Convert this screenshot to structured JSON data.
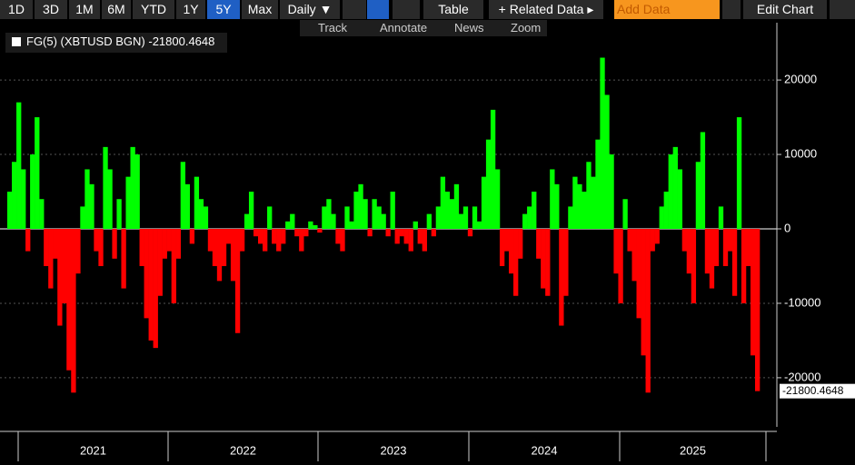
{
  "toolbar": {
    "ranges": [
      "1D",
      "3D",
      "1M",
      "6M",
      "YTD",
      "1Y",
      "5Y",
      "Max"
    ],
    "frequency": "Daily ▼",
    "table": "Table",
    "related": "+ Related Data ▸",
    "add_data": "Add Data",
    "edit": "Edit Chart"
  },
  "subtoolbar": [
    "Track",
    "Annotate",
    "News",
    "Zoom"
  ],
  "chart_data": {
    "type": "bar",
    "series_name": "FG(5) (XBTUSD BGN)",
    "positive_color": "#00ff00",
    "negative_color": "#ff0000",
    "x_labels": [
      "2021",
      "2022",
      "2023",
      "2024",
      "2025"
    ],
    "ylim": [
      -26600,
      27700
    ],
    "yticks": [
      -20000,
      -10000,
      0,
      10000,
      20000
    ],
    "grid": true,
    "values": [
      5000,
      9000,
      17000,
      8000,
      -3000,
      10000,
      15000,
      4000,
      -5000,
      -8000,
      -4000,
      -13000,
      -10000,
      -19000,
      -22000,
      -6000,
      3000,
      8000,
      6000,
      -3000,
      -5000,
      11000,
      8000,
      -4000,
      4000,
      -8000,
      7000,
      11000,
      10000,
      -5000,
      -12000,
      -15000,
      -16000,
      -9000,
      -4000,
      -3000,
      -10000,
      -4000,
      9000,
      6000,
      -2000,
      7000,
      4000,
      3000,
      -3000,
      -5000,
      -7000,
      -5000,
      -2000,
      -7000,
      -14000,
      -3000,
      2000,
      5000,
      -1000,
      -2000,
      -3000,
      3000,
      -2000,
      -3000,
      -2000,
      1000,
      2000,
      -1000,
      -3000,
      -1000,
      1000,
      500,
      -500,
      3000,
      4000,
      2000,
      -2000,
      -3000,
      3000,
      1000,
      5000,
      6000,
      4000,
      -1000,
      4000,
      3000,
      2000,
      -1000,
      5000,
      -2000,
      -1000,
      -2000,
      -3000,
      1000,
      -2000,
      -3000,
      2000,
      -1000,
      3000,
      7000,
      5000,
      4000,
      6000,
      2000,
      3000,
      -1000,
      3000,
      1000,
      7000,
      12000,
      16000,
      8000,
      -5000,
      -3000,
      -6000,
      -9000,
      -4000,
      2000,
      3000,
      5000,
      -4000,
      -8000,
      -9000,
      8000,
      6000,
      -13000,
      -9000,
      3000,
      7000,
      6000,
      5000,
      9000,
      7000,
      12000,
      23000,
      18000,
      10000,
      -6000,
      -10000,
      4000,
      -3000,
      -7000,
      -12000,
      -17000,
      -22000,
      -3000,
      -2000,
      3000,
      5000,
      10000,
      11000,
      8000,
      -3000,
      -6000,
      -10000,
      9000,
      13000,
      -6000,
      -8000,
      -5000,
      3000,
      -5000,
      -3000,
      -9000,
      15000,
      -10000,
      -5000,
      -17000,
      -21800.4648
    ]
  }
}
